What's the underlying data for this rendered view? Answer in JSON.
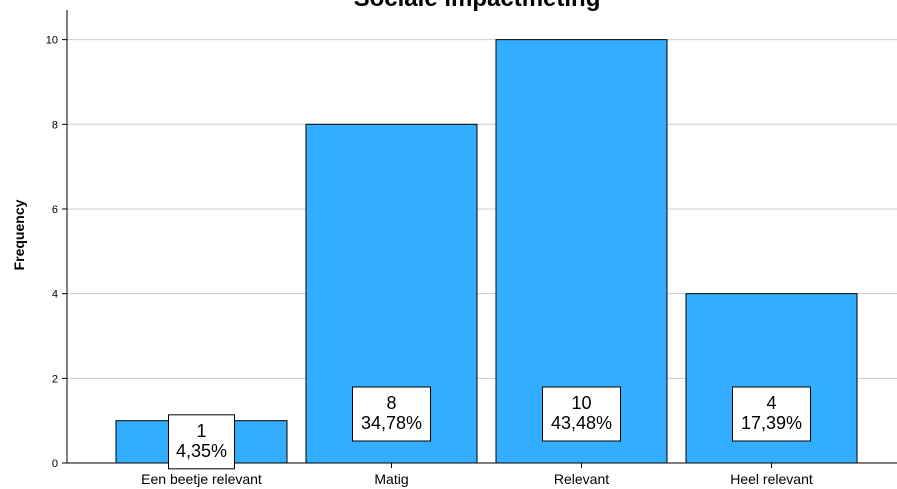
{
  "chart_data": {
    "type": "bar",
    "title": "Sociale impactmeting",
    "ylabel": "Frequency",
    "xlabel": "",
    "categories": [
      "Een beetje relevant",
      "Matig",
      "Relevant",
      "Heel relevant"
    ],
    "values": [
      1,
      8,
      10,
      4
    ],
    "percent_labels": [
      "4,35%",
      "34,78%",
      "43,48%",
      "17,39%"
    ],
    "ylim": [
      0,
      10.7
    ],
    "yticks": [
      0,
      2,
      4,
      6,
      8,
      10
    ],
    "grid": true,
    "bar_color": "#33adff"
  }
}
